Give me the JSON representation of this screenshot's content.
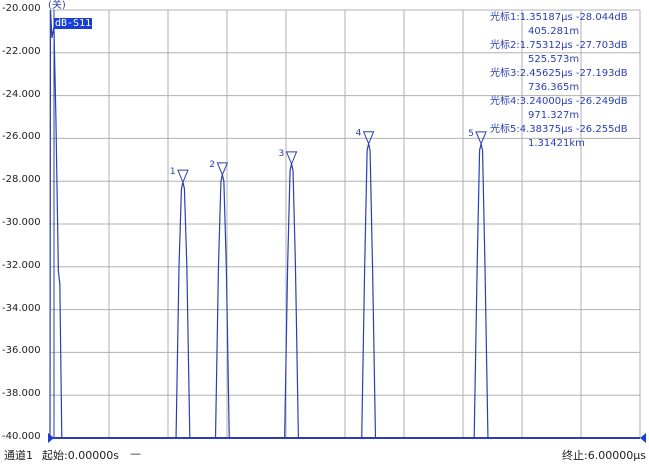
{
  "chart_data": {
    "type": "line",
    "trace_label": "dB-S11",
    "state_label": "(关)",
    "xlim": [
      0,
      6
    ],
    "ylim": [
      -40,
      -20
    ],
    "grid": true,
    "y_ticks": [
      "-20.000",
      "-22.000",
      "-24.000",
      "-26.000",
      "-28.000",
      "-30.000",
      "-32.000",
      "-34.000",
      "-36.000",
      "-38.000",
      "-40.000"
    ],
    "colors": {
      "trace": "#2a3fb0",
      "grid": "#b0b0b0",
      "label_bg": "#1a3fd6"
    },
    "initial_trace": [
      [
        0,
        -40
      ],
      [
        0.005,
        -20
      ],
      [
        0.02,
        -21.3
      ],
      [
        0.04,
        -20.8
      ],
      [
        0.06,
        -25
      ],
      [
        0.085,
        -32.2
      ],
      [
        0.1,
        -32.8
      ],
      [
        0.12,
        -40
      ]
    ],
    "markers": [
      {
        "id": "1",
        "x": 1.35187,
        "y": -28.044,
        "text": "光标1:1.35187μs -28.044dB",
        "distance": "405.281m"
      },
      {
        "id": "2",
        "x": 1.75312,
        "y": -27.703,
        "text": "光标2:1.75312μs -27.703dB",
        "distance": "525.573m"
      },
      {
        "id": "3",
        "x": 2.45625,
        "y": -27.193,
        "text": "光标3:2.45625μs -27.193dB",
        "distance": "736.365m"
      },
      {
        "id": "4",
        "x": 3.24,
        "y": -26.249,
        "text": "光标4:3.24000μs -26.249dB",
        "distance": "971.327m"
      },
      {
        "id": "5",
        "x": 4.38375,
        "y": -26.255,
        "text": "光标5:4.38375μs -26.255dB",
        "distance": "1.31421km"
      }
    ]
  },
  "footer": {
    "channel": "通道1",
    "start": "起始:0.00000s",
    "dash": "—",
    "stop": "终止:6.00000μs"
  }
}
